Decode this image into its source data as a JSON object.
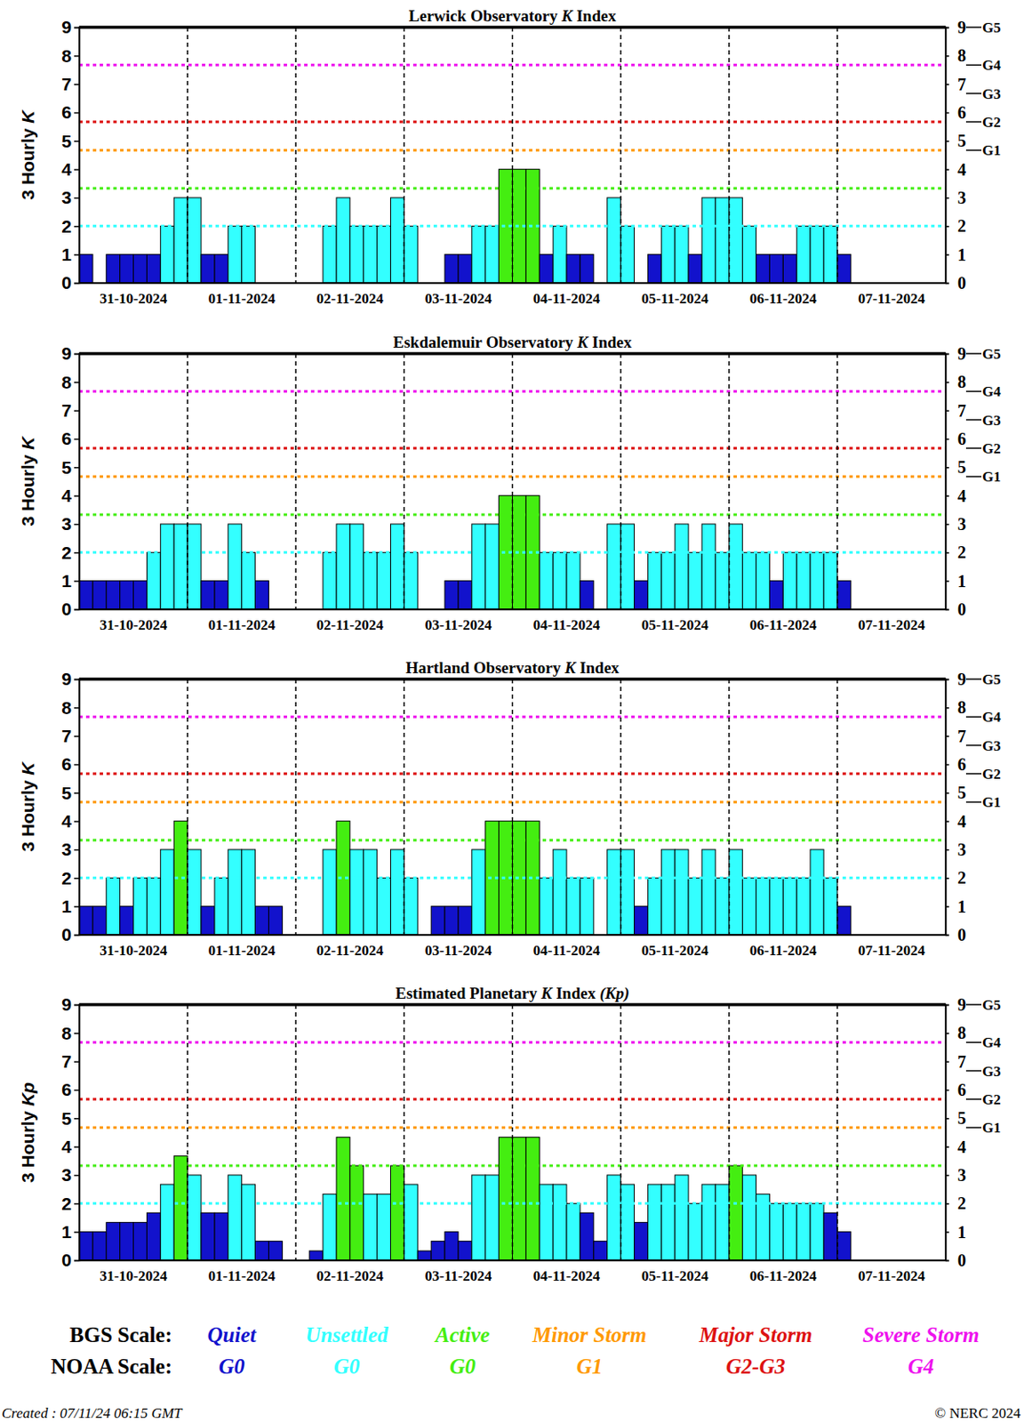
{
  "chart_data": [
    {
      "type": "bar",
      "title": "Lerwick Observatory K Index",
      "ylabel": "3 Hourly K",
      "categories": [
        null,
        null,
        null,
        null,
        "31-10-2024",
        null,
        null,
        null,
        null,
        null,
        null,
        null,
        "01-11-2024",
        null,
        null,
        null,
        null,
        null,
        null,
        null,
        "02-11-2024",
        null,
        null,
        null,
        null,
        null,
        null,
        null,
        "03-11-2024",
        null,
        null,
        null,
        null,
        null,
        null,
        null,
        "04-11-2024",
        null,
        null,
        null,
        null,
        null,
        null,
        null,
        "05-11-2024",
        null,
        null,
        null,
        null,
        null,
        null,
        null,
        "06-11-2024",
        null,
        null,
        null,
        null,
        null,
        null,
        null,
        "07-11-2024",
        null,
        null,
        null
      ],
      "values": [
        1,
        0,
        1,
        1,
        1,
        1,
        2,
        3,
        3,
        1,
        1,
        2,
        2,
        0,
        0,
        0,
        0,
        0,
        2,
        3,
        2,
        2,
        2,
        3,
        2,
        0,
        0,
        1,
        1,
        2,
        2,
        4,
        4,
        4,
        1,
        2,
        1,
        1,
        0,
        3,
        2,
        0,
        1,
        2,
        2,
        1,
        3,
        3,
        3,
        2,
        1,
        1,
        1,
        2,
        2,
        2,
        1,
        null,
        null,
        null,
        null,
        null,
        null,
        null
      ],
      "ylim": [
        0,
        9
      ],
      "yticks": [
        0,
        1,
        2,
        3,
        4,
        5,
        6,
        7,
        8,
        9
      ],
      "y2lim": [
        0,
        9
      ],
      "y2ticks": [
        0,
        1,
        2,
        3,
        4,
        5,
        6,
        7,
        8,
        9
      ]
    },
    {
      "type": "bar",
      "title": "Eskdalemuir Observatory K Index",
      "ylabel": "3 Hourly K",
      "categories": [
        null,
        null,
        null,
        null,
        "31-10-2024",
        null,
        null,
        null,
        null,
        null,
        null,
        null,
        "01-11-2024",
        null,
        null,
        null,
        null,
        null,
        null,
        null,
        "02-11-2024",
        null,
        null,
        null,
        null,
        null,
        null,
        null,
        "03-11-2024",
        null,
        null,
        null,
        null,
        null,
        null,
        null,
        "04-11-2024",
        null,
        null,
        null,
        null,
        null,
        null,
        null,
        "05-11-2024",
        null,
        null,
        null,
        null,
        null,
        null,
        null,
        "06-11-2024",
        null,
        null,
        null,
        null,
        null,
        null,
        null,
        "07-11-2024",
        null,
        null,
        null
      ],
      "values": [
        1,
        1,
        1,
        1,
        1,
        2,
        3,
        3,
        3,
        1,
        1,
        3,
        2,
        1,
        0,
        0,
        0,
        0,
        2,
        3,
        3,
        2,
        2,
        3,
        2,
        0,
        0,
        1,
        1,
        3,
        3,
        4,
        4,
        4,
        2,
        2,
        2,
        1,
        0,
        3,
        3,
        1,
        2,
        2,
        3,
        2,
        3,
        2,
        3,
        2,
        2,
        1,
        2,
        2,
        2,
        2,
        1,
        null,
        null,
        null,
        null,
        null,
        null,
        null
      ],
      "ylim": [
        0,
        9
      ],
      "yticks": [
        0,
        1,
        2,
        3,
        4,
        5,
        6,
        7,
        8,
        9
      ],
      "y2lim": [
        0,
        9
      ],
      "y2ticks": [
        0,
        1,
        2,
        3,
        4,
        5,
        6,
        7,
        8,
        9
      ]
    },
    {
      "type": "bar",
      "title": "Hartland Observatory K Index",
      "ylabel": "3 Hourly K",
      "categories": [
        null,
        null,
        null,
        null,
        "31-10-2024",
        null,
        null,
        null,
        null,
        null,
        null,
        null,
        "01-11-2024",
        null,
        null,
        null,
        null,
        null,
        null,
        null,
        "02-11-2024",
        null,
        null,
        null,
        null,
        null,
        null,
        null,
        "03-11-2024",
        null,
        null,
        null,
        null,
        null,
        null,
        null,
        "04-11-2024",
        null,
        null,
        null,
        null,
        null,
        null,
        null,
        "05-11-2024",
        null,
        null,
        null,
        null,
        null,
        null,
        null,
        "06-11-2024",
        null,
        null,
        null,
        null,
        null,
        null,
        null,
        "07-11-2024",
        null,
        null,
        null
      ],
      "values": [
        1,
        1,
        2,
        1,
        2,
        2,
        3,
        4,
        3,
        1,
        2,
        3,
        3,
        1,
        1,
        0,
        0,
        0,
        3,
        4,
        3,
        3,
        2,
        3,
        2,
        0,
        1,
        1,
        1,
        3,
        4,
        4,
        4,
        4,
        2,
        3,
        2,
        2,
        0,
        3,
        3,
        1,
        2,
        3,
        3,
        2,
        3,
        2,
        3,
        2,
        2,
        2,
        2,
        2,
        3,
        2,
        1,
        null,
        null,
        null,
        null,
        null,
        null,
        null
      ],
      "ylim": [
        0,
        9
      ],
      "yticks": [
        0,
        1,
        2,
        3,
        4,
        5,
        6,
        7,
        8,
        9
      ],
      "y2lim": [
        0,
        9
      ],
      "y2ticks": [
        0,
        1,
        2,
        3,
        4,
        5,
        6,
        7,
        8,
        9
      ]
    },
    {
      "type": "bar",
      "title": "Estimated Planetary K Index (Kp)",
      "ylabel": "3 Hourly Kp",
      "categories": [
        null,
        null,
        null,
        null,
        "31-10-2024",
        null,
        null,
        null,
        null,
        null,
        null,
        null,
        "01-11-2024",
        null,
        null,
        null,
        null,
        null,
        null,
        null,
        "02-11-2024",
        null,
        null,
        null,
        null,
        null,
        null,
        null,
        "03-11-2024",
        null,
        null,
        null,
        null,
        null,
        null,
        null,
        "04-11-2024",
        null,
        null,
        null,
        null,
        null,
        null,
        null,
        "05-11-2024",
        null,
        null,
        null,
        null,
        null,
        null,
        null,
        "06-11-2024",
        null,
        null,
        null,
        null,
        null,
        null,
        null,
        "07-11-2024",
        null,
        null,
        null
      ],
      "values": [
        1,
        1,
        1.33,
        1.33,
        1.33,
        1.67,
        2.67,
        3.67,
        3,
        1.67,
        1.67,
        3,
        2.67,
        0.67,
        0.67,
        0,
        0,
        0.33,
        2.33,
        4.33,
        3.33,
        2.33,
        2.33,
        3.33,
        2.67,
        0.33,
        0.67,
        1,
        0.67,
        3,
        3,
        4.33,
        4.33,
        4.33,
        2.67,
        2.67,
        2,
        1.67,
        0.67,
        3,
        2.67,
        1.33,
        2.67,
        2.67,
        3,
        2,
        2.67,
        2.67,
        3.33,
        3,
        2.33,
        2,
        2,
        2,
        2,
        1.67,
        1,
        null,
        null,
        null,
        null,
        null,
        null,
        null
      ],
      "ylim": [
        0,
        9
      ],
      "yticks": [
        0,
        1,
        2,
        3,
        4,
        5,
        6,
        7,
        8,
        9
      ],
      "y2lim": [
        0,
        9
      ],
      "y2ticks": [
        0,
        1,
        2,
        3,
        4,
        5,
        6,
        7,
        8,
        9
      ]
    }
  ],
  "noaa_ticks": [
    {
      "value": 4.67,
      "label": "G1"
    },
    {
      "value": 5.67,
      "label": "G2"
    },
    {
      "value": 6.67,
      "label": "G3"
    },
    {
      "value": 7.67,
      "label": "G4"
    },
    {
      "value": 9,
      "label": "G5"
    }
  ],
  "legend": {
    "bgs_label": "BGS Scale:",
    "noaa_label": "NOAA Scale:",
    "levels": [
      {
        "name": "Quiet",
        "noaa": "G0",
        "color": "#1212cc",
        "min": 0
      },
      {
        "name": "Unsettled",
        "noaa": "G0",
        "color": "#33ffff",
        "min": 2
      },
      {
        "name": "Active",
        "noaa": "G0",
        "color": "#44ee11",
        "min": 3.33
      },
      {
        "name": "Minor Storm",
        "noaa": "G1",
        "color": "#ff9900",
        "min": 4.67
      },
      {
        "name": "Major Storm",
        "noaa": "G2-G3",
        "color": "#dd1111",
        "min": 5.67
      },
      {
        "name": "Severe Storm",
        "noaa": "G4",
        "color": "#ee11ee",
        "min": 7.67
      }
    ]
  },
  "footer": {
    "created": "Created : 07/11/24 06:15 GMT",
    "copyright": "© NERC 2024"
  }
}
